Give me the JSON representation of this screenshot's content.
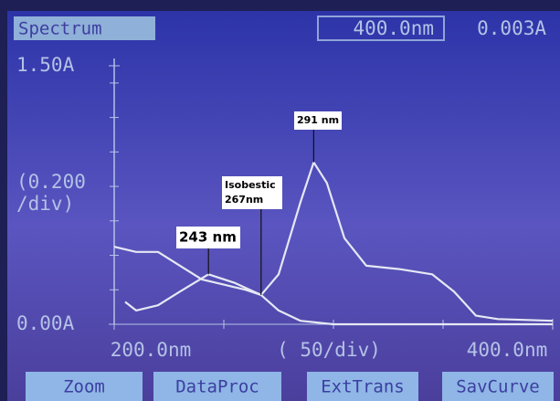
{
  "screen": {
    "title": "Spectrum",
    "wavelength": "400.0nm",
    "absorbance": "0.003A",
    "buttons": [
      "Zoom",
      "DataProc",
      "ExtTrans",
      "SavCurve"
    ]
  },
  "chart_data": {
    "type": "line",
    "x_scale_label": "(  50/div)",
    "y_scale_label": [
      "(0.200",
      "/div)"
    ],
    "xlim": [
      200,
      400
    ],
    "ylim": [
      0,
      1.5
    ],
    "xticks": [
      {
        "value": 200,
        "label": "200.0nm"
      },
      {
        "value": 400,
        "label": "400.0nm"
      }
    ],
    "xminor": [
      250,
      300,
      350
    ],
    "yticks": [
      {
        "value": 0,
        "label": "0.00A"
      },
      {
        "value": 1.5,
        "label": "1.50A"
      }
    ],
    "yminor": [
      0.2,
      0.4,
      0.6,
      0.8,
      1.0,
      1.2,
      1.4
    ],
    "series": [
      {
        "color": "#e6e8f4",
        "x": [
          205,
          210,
          220,
          230,
          243,
          255,
          267,
          275,
          285,
          291,
          297,
          305,
          315,
          330,
          345,
          355,
          365,
          375,
          400
        ],
        "values": [
          0.13,
          0.08,
          0.11,
          0.19,
          0.29,
          0.24,
          0.17,
          0.29,
          0.71,
          0.94,
          0.82,
          0.5,
          0.34,
          0.32,
          0.29,
          0.19,
          0.05,
          0.03,
          0.02
        ]
      },
      {
        "color": "#e6e8f4",
        "x": [
          200,
          210,
          220,
          230,
          240,
          250,
          260,
          267,
          275,
          285,
          300,
          400
        ],
        "values": [
          0.45,
          0.42,
          0.42,
          0.34,
          0.26,
          0.23,
          0.2,
          0.17,
          0.08,
          0.02,
          0,
          0
        ]
      }
    ],
    "annotations": [
      {
        "text": [
          "291 nm"
        ],
        "x": 291,
        "y": 0.94
      },
      {
        "text": [
          "Isobestic",
          "267nm"
        ],
        "x": 267,
        "y": 0.17
      },
      {
        "text": [
          "243 nm"
        ],
        "x": 243,
        "y": 0.29
      }
    ]
  }
}
